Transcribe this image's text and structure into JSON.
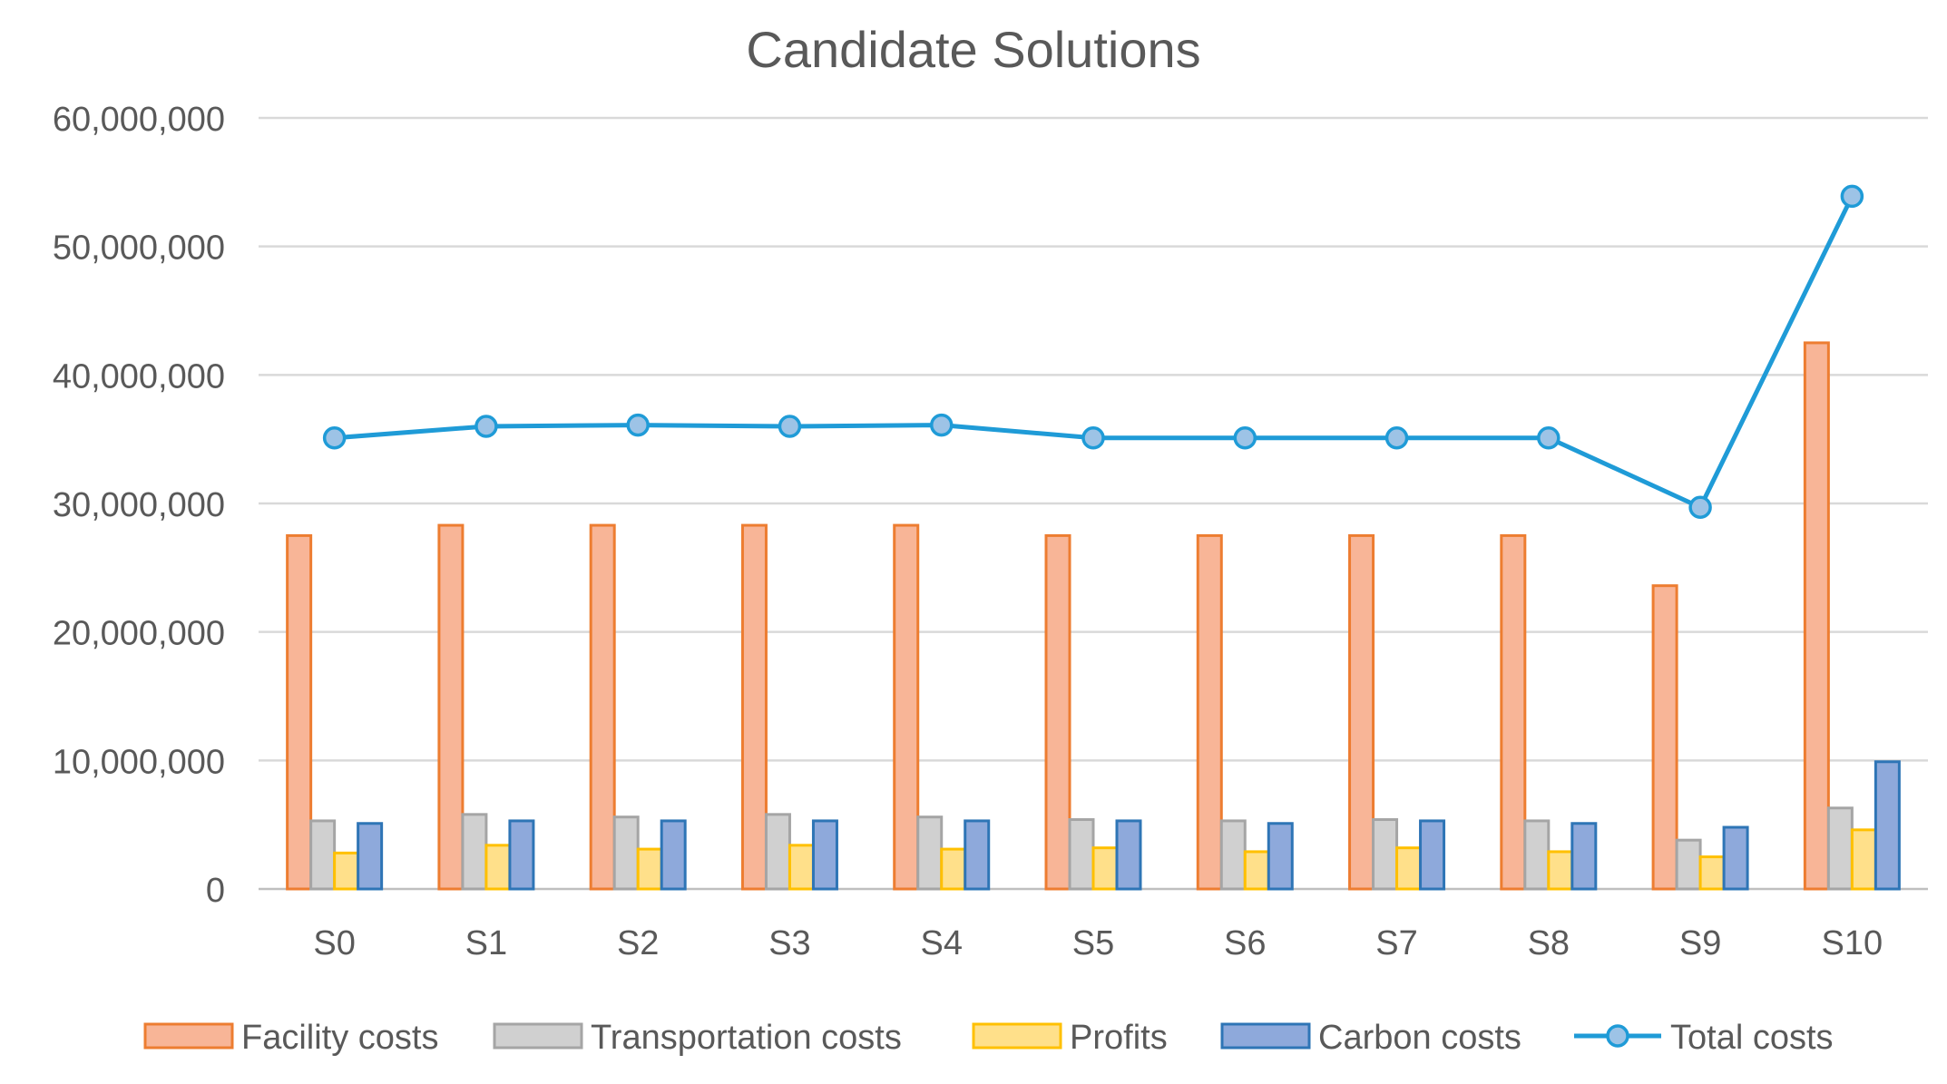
{
  "chart_data": {
    "type": "bar",
    "title": "Candidate  Solutions",
    "xlabel": "",
    "ylabel": "",
    "ylim": [
      0,
      60000000
    ],
    "yticks": [
      0,
      10000000,
      20000000,
      30000000,
      40000000,
      50000000,
      60000000
    ],
    "ytick_labels": [
      "0",
      "10,000,000",
      "20,000,000",
      "30,000,000",
      "40,000,000",
      "50,000,000",
      "60,000,000"
    ],
    "grid": true,
    "legend_position": "bottom",
    "categories": [
      "S0",
      "S1",
      "S2",
      "S3",
      "S4",
      "S5",
      "S6",
      "S7",
      "S8",
      "S9",
      "S10"
    ],
    "series": [
      {
        "name": "Facility costs",
        "kind": "bar",
        "fill": "#f8b597",
        "stroke": "#ed7d31",
        "values": [
          27500000,
          28300000,
          28300000,
          28300000,
          28300000,
          27500000,
          27500000,
          27500000,
          27500000,
          23600000,
          42500000
        ]
      },
      {
        "name": "Transportation costs",
        "kind": "bar",
        "fill": "#d0d0d0",
        "stroke": "#a5a5a5",
        "values": [
          5300000,
          5800000,
          5600000,
          5800000,
          5600000,
          5400000,
          5300000,
          5400000,
          5300000,
          3800000,
          6300000
        ]
      },
      {
        "name": "Profits",
        "kind": "bar",
        "fill": "#ffe08a",
        "stroke": "#ffc000",
        "values": [
          2800000,
          3400000,
          3100000,
          3400000,
          3100000,
          3200000,
          2900000,
          3200000,
          2900000,
          2500000,
          4600000
        ]
      },
      {
        "name": "Carbon costs",
        "kind": "bar",
        "fill": "#8ea9db",
        "stroke": "#2e75b6",
        "values": [
          5100000,
          5300000,
          5300000,
          5300000,
          5300000,
          5300000,
          5100000,
          5300000,
          5100000,
          4800000,
          9900000
        ]
      },
      {
        "name": "Total costs",
        "kind": "line",
        "stroke": "#1f9bd7",
        "marker_fill": "#9dc3e6",
        "values": [
          35100000,
          36000000,
          36100000,
          36000000,
          36100000,
          35100000,
          35100000,
          35100000,
          35100000,
          29700000,
          53900000
        ]
      }
    ]
  }
}
